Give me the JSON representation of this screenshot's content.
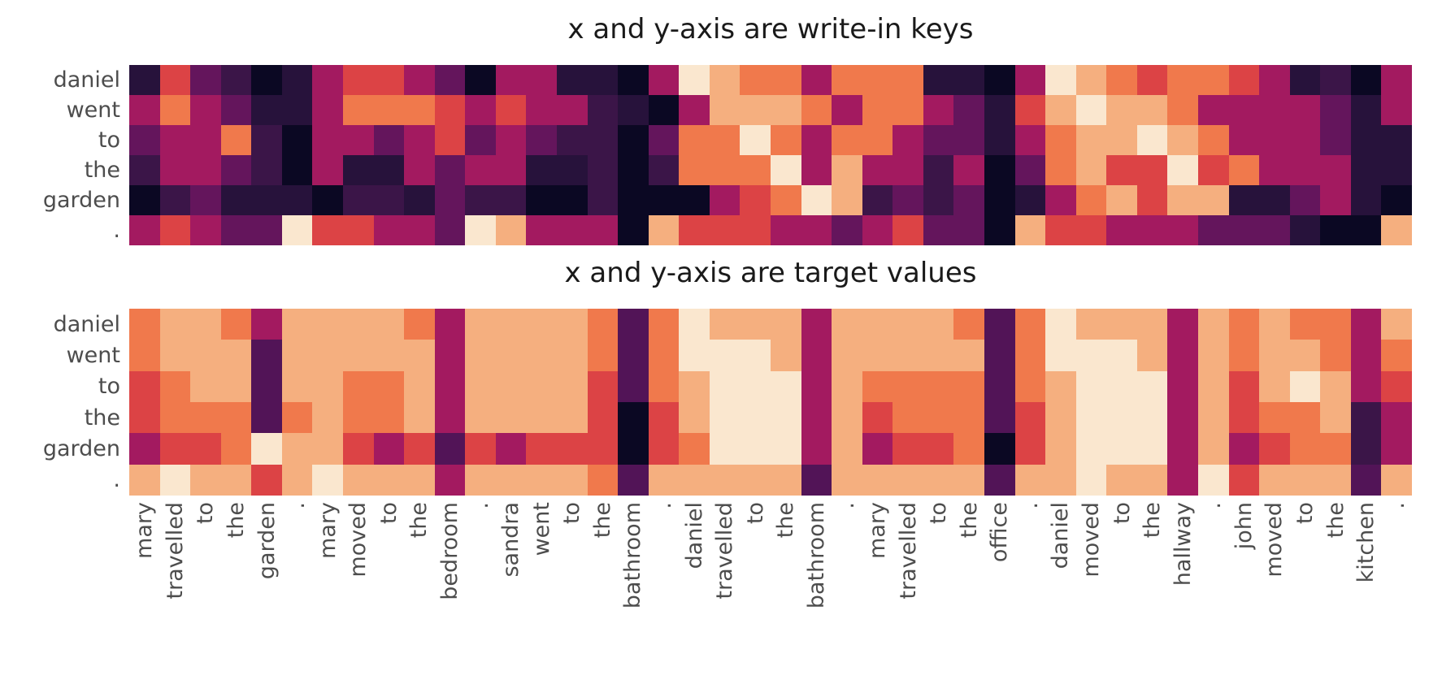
{
  "figure": {
    "kind": "attention heatmap pair",
    "background": "#ffffff",
    "title_color": "#1a1a1a",
    "tick_label_color": "#4d4d4d"
  },
  "titles": {
    "top": "x and y-axis are write-in keys",
    "bottom": "x and y-axis are target values"
  },
  "y_labels": [
    "daniel",
    "went",
    "to",
    "the",
    "garden",
    "."
  ],
  "x_labels": [
    "mary",
    "travelled",
    "to",
    "the",
    "garden",
    ".",
    "mary",
    "moved",
    "to",
    "the",
    "bedroom",
    ".",
    "sandra",
    "went",
    "to",
    "the",
    "bathroom",
    ".",
    "daniel",
    "travelled",
    "to",
    "the",
    "bathroom",
    ".",
    "mary",
    "travelled",
    "to",
    "the",
    "office",
    ".",
    "daniel",
    "moved",
    "to",
    "the",
    "hallway",
    ".",
    "john",
    "moved",
    "to",
    "the",
    "kitchen",
    "."
  ],
  "chart_data": [
    {
      "type": "heatmap",
      "title": "x and y-axis are write-in keys",
      "rows": [
        "daniel",
        "went",
        "to",
        "the",
        "garden",
        "."
      ],
      "cols": [
        "mary",
        "travelled",
        "to",
        "the",
        "garden",
        ".",
        "mary",
        "moved",
        "to",
        "the",
        "bedroom",
        ".",
        "sandra",
        "went",
        "to",
        "the",
        "bathroom",
        ".",
        "daniel",
        "travelled",
        "to",
        "the",
        "bathroom",
        ".",
        "mary",
        "travelled",
        "to",
        "the",
        "office",
        ".",
        "daniel",
        "moved",
        "to",
        "the",
        "hallway",
        ".",
        "john",
        "moved",
        "to",
        "the",
        "kitchen",
        "."
      ],
      "colormap": "rocket",
      "note": "cell letters encode estimated normalized attention value, see value_key",
      "value_key": {
        "K": 0.03,
        "D": 0.14,
        "S": 0.21,
        "B": 0.28,
        "P": 0.33,
        "M": 0.46,
        "R": 0.6,
        "O": 0.72,
        "L": 0.83,
        "W": 0.9,
        "C": 0.96
      },
      "cells": [
        "DRPSKDMRRMPKMMDDKMCLOOMOOODDKMCLOROORMDSKM",
        "MOMPDDMOOORMRMMSDKMLLLOMOOMPDRLCLLOMMMMPDM",
        "PMMOSKMMPMRPMPSSKPOOCOMOOMPPDMOLLCLOMMMPDD",
        "SMMPSKMDDMPMMDDSKSOOOCMLMMSMKPOLRRCROMMMDD",
        "KSPDDDKSSDPSSKKSKKKMROCLSPSPKDMOLRLLDDPMDK",
        "MRMPPCRRMMPCLMMMKLRRRMMPMRPPKLRRMMMPPPDKKL"
      ]
    },
    {
      "type": "heatmap",
      "title": "x and y-axis are target values",
      "rows": [
        "daniel",
        "went",
        "to",
        "the",
        "garden",
        "."
      ],
      "cols": [
        "mary",
        "travelled",
        "to",
        "the",
        "garden",
        ".",
        "mary",
        "moved",
        "to",
        "the",
        "bedroom",
        ".",
        "sandra",
        "went",
        "to",
        "the",
        "bathroom",
        ".",
        "daniel",
        "travelled",
        "to",
        "the",
        "bathroom",
        ".",
        "mary",
        "travelled",
        "to",
        "the",
        "office",
        ".",
        "daniel",
        "moved",
        "to",
        "the",
        "hallway",
        ".",
        "john",
        "moved",
        "to",
        "the",
        "kitchen",
        "."
      ],
      "colormap": "rocket",
      "note": "cell letters encode estimated normalized attention value, see value_key",
      "value_key": {
        "K": 0.03,
        "D": 0.14,
        "S": 0.21,
        "B": 0.28,
        "P": 0.33,
        "M": 0.46,
        "R": 0.6,
        "O": 0.72,
        "L": 0.83,
        "W": 0.9,
        "C": 0.96
      },
      "cells": [
        "OLLOMLLLLOMLLLLOBOCLLLMLLLLOBOCLLLMLOLOOML",
        "OLLLBLLLLLMLLLLOBOCCCLMLLLLLBOCCCLMLOLLOMO",
        "ROLLBLLOOLMLLLLRBOLCCCMLOOOOBOLCCCMLRLCLMR",
        "ROOOBOLOOLMLLLLRKRLCCCMLROOOBRLCCCMLROOLSM",
        "MRROCLLRMRBRMRRRKROCCCMLMRROKRLCCCMLMROOSM",
        "LCLLRLCLLLMLLLLOBLLLLLBLLLLLBLLCLLMCRLLLBL"
      ]
    }
  ],
  "colormap_anchors": [
    [
      0.0,
      "#04051D"
    ],
    [
      0.14,
      "#27123B"
    ],
    [
      0.21,
      "#3B1548"
    ],
    [
      0.28,
      "#521457"
    ],
    [
      0.33,
      "#64155C"
    ],
    [
      0.46,
      "#A31A60"
    ],
    [
      0.6,
      "#DC4345"
    ],
    [
      0.72,
      "#F0794C"
    ],
    [
      0.83,
      "#F5AF7F"
    ],
    [
      0.9,
      "#F8CEA8"
    ],
    [
      0.96,
      "#FAE7CF"
    ],
    [
      1.0,
      "#FCF1E2"
    ]
  ]
}
